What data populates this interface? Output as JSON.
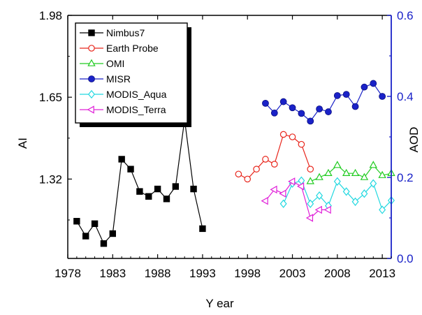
{
  "chart_data": {
    "type": "line",
    "xlabel": "Y ear",
    "ylabel_left": "AI",
    "ylabel_right": "AOD",
    "xlim": [
      1978,
      2014
    ],
    "ylim_left": [
      1.0,
      1.98
    ],
    "ylim_right": [
      0.0,
      0.6
    ],
    "x_ticks": [
      1978,
      1983,
      1988,
      1993,
      1998,
      2003,
      2008,
      2013
    ],
    "y_left_ticks": [
      1.32,
      1.65,
      1.98
    ],
    "y_right_ticks": [
      0.0,
      0.2,
      0.4,
      0.6
    ],
    "y_left_tick_labels": [
      "1.32",
      "1.65",
      "1.98"
    ],
    "y_right_tick_labels": [
      "0.0",
      "0.2",
      "0.4",
      "0.6"
    ],
    "legend_position": "top-left",
    "colors": {
      "Nimbus7": "#000000",
      "Earth Probe": "#e8261c",
      "OMI": "#22cc22",
      "MISR": "#1a22c8",
      "MODIS_Aqua": "#22d8e0",
      "MODIS_Terra": "#e020d8",
      "right_axis": "#1a22c8"
    },
    "series": [
      {
        "name": "Nimbus7",
        "axis": "left",
        "marker": "square-filled",
        "x": [
          1979,
          1980,
          1981,
          1982,
          1983,
          1984,
          1985,
          1986,
          1987,
          1988,
          1989,
          1990,
          1991,
          1992,
          1993
        ],
        "y": [
          1.15,
          1.09,
          1.14,
          1.06,
          1.1,
          1.4,
          1.36,
          1.27,
          1.25,
          1.28,
          1.24,
          1.29,
          1.56,
          1.28,
          1.12
        ]
      },
      {
        "name": "Earth Probe",
        "axis": "left",
        "marker": "circle-open",
        "x": [
          1997,
          1998,
          1999,
          2000,
          2001,
          2002,
          2003,
          2004,
          2005
        ],
        "y": [
          1.34,
          1.32,
          1.36,
          1.4,
          1.38,
          1.5,
          1.49,
          1.46,
          1.36
        ]
      },
      {
        "name": "OMI",
        "axis": "right",
        "marker": "triangle-up-open",
        "x": [
          2005,
          2006,
          2007,
          2008,
          2009,
          2010,
          2011,
          2012,
          2013,
          2014
        ],
        "y": [
          0.19,
          0.2,
          0.21,
          0.23,
          0.21,
          0.21,
          0.2,
          0.23,
          0.205,
          0.21
        ]
      },
      {
        "name": "MISR",
        "axis": "right",
        "marker": "circle-filled",
        "x": [
          2000,
          2001,
          2002,
          2003,
          2004,
          2005,
          2006,
          2007,
          2008,
          2009,
          2010,
          2011,
          2012,
          2013
        ],
        "y": [
          0.383,
          0.359,
          0.387,
          0.372,
          0.358,
          0.339,
          0.369,
          0.362,
          0.402,
          0.405,
          0.375,
          0.423,
          0.432,
          0.4
        ]
      },
      {
        "name": "MODIS_Aqua",
        "axis": "right",
        "marker": "diamond-open",
        "x": [
          2002,
          2003,
          2004,
          2005,
          2006,
          2007,
          2008,
          2009,
          2010,
          2011,
          2012,
          2013,
          2014
        ],
        "y": [
          0.135,
          0.185,
          0.192,
          0.135,
          0.155,
          0.13,
          0.19,
          0.165,
          0.14,
          0.16,
          0.185,
          0.12,
          0.143
        ]
      },
      {
        "name": "MODIS_Terra",
        "axis": "right",
        "marker": "triangle-left-open",
        "x": [
          2000,
          2001,
          2002,
          2003,
          2004,
          2005,
          2006,
          2007
        ],
        "y": [
          0.142,
          0.17,
          0.16,
          0.19,
          0.178,
          0.1,
          0.12,
          0.12
        ]
      }
    ]
  }
}
